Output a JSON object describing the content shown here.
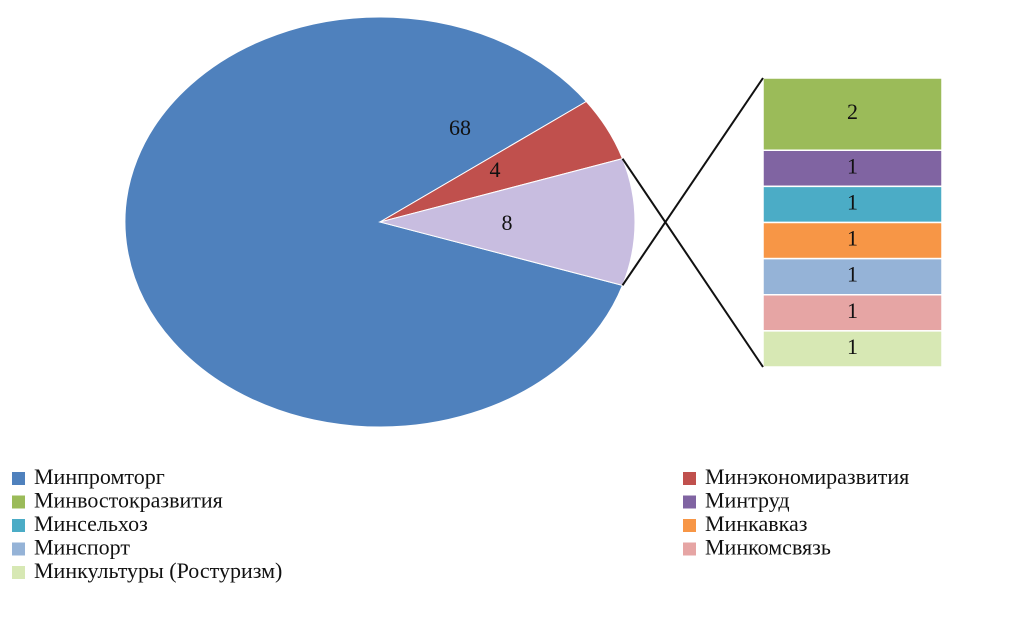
{
  "chart_data": {
    "type": "bar-of-pie",
    "pie": {
      "categories": [
        "Минпромторг",
        "Минэкономиразвития",
        null
      ],
      "values": [
        68,
        4,
        8
      ],
      "colors": [
        "#4f81bd",
        "#c0504d",
        "#c8bde0"
      ]
    },
    "bar": {
      "categories": [
        "Минвостокразвития",
        "Минтруд",
        "Минсельхоз",
        "Минкавказ",
        "Минспорт",
        "Минкомсвязь",
        "Минкультуры (Ростуризм)"
      ],
      "values": [
        2,
        1,
        1,
        1,
        1,
        1,
        1
      ],
      "colors": [
        "#9bbb59",
        "#8064a2",
        "#4bacc6",
        "#f79646",
        "#95b3d7",
        "#e6a5a4",
        "#d7e8b4"
      ]
    },
    "legend": "bottom"
  }
}
